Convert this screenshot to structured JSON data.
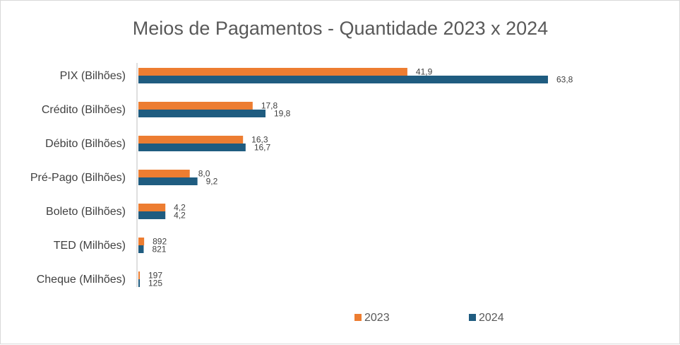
{
  "chart_data": {
    "type": "bar",
    "orientation": "horizontal",
    "title": "Meios de Pagamentos - Quantidade 2023 x 2024",
    "categories": [
      "PIX (Bilhões)",
      "Crédito (Bilhões)",
      "Débito (Bilhões)",
      "Pré-Pago (Bilhões)",
      "Boleto (Bilhões)",
      "TED (Milhões)",
      "Cheque (Milhões)"
    ],
    "series": [
      {
        "name": "2023",
        "color": "#ED7D31",
        "values": [
          41.9,
          17.8,
          16.3,
          8.0,
          4.2,
          0.892,
          0.197
        ],
        "labels": [
          "41,9",
          "17,8",
          "16,3",
          "8,0",
          "4,2",
          "892",
          "197"
        ]
      },
      {
        "name": "2024",
        "color": "#1F5C80",
        "values": [
          63.8,
          19.8,
          16.7,
          9.2,
          4.2,
          0.821,
          0.125
        ],
        "labels": [
          "63,8",
          "19,8",
          "16,7",
          "9,2",
          "4,2",
          "821",
          "125"
        ]
      }
    ],
    "xlim": [
      0,
      66
    ],
    "grid": false,
    "legend_position": "bottom"
  }
}
